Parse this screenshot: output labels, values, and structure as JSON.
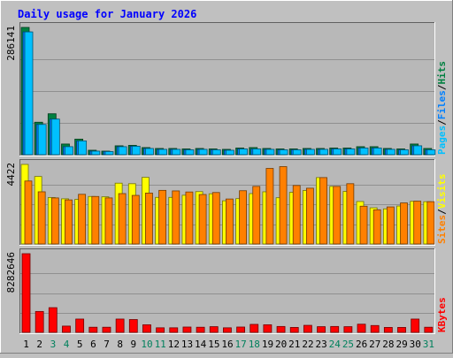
{
  "chart_data": {
    "type": "bar",
    "title": "Daily usage for January 2026",
    "categories": [
      "1",
      "2",
      "3",
      "4",
      "5",
      "6",
      "7",
      "8",
      "9",
      "10",
      "11",
      "12",
      "13",
      "14",
      "15",
      "16",
      "17",
      "18",
      "19",
      "20",
      "21",
      "22",
      "23",
      "24",
      "25",
      "26",
      "27",
      "28",
      "29",
      "30",
      "31"
    ],
    "weekend_days": [
      "3",
      "4",
      "10",
      "11",
      "17",
      "18",
      "24",
      "25",
      "31"
    ],
    "panels": [
      {
        "id": "hits-files",
        "max_label": "286141",
        "ylim": [
          0,
          286141
        ],
        "legend": [
          "Pages",
          "Files",
          "Hits"
        ],
        "series": [
          {
            "name": "Hits",
            "color": "#008040",
            "values": [
              286141,
              73000,
              92000,
              24000,
              35000,
              10000,
              8000,
              20000,
              21000,
              16000,
              14000,
              14000,
              13000,
              14000,
              13000,
              12000,
              15000,
              16000,
              14000,
              13000,
              13000,
              14000,
              14000,
              15000,
              15000,
              18000,
              18000,
              14000,
              13000,
              24000,
              14000
            ]
          },
          {
            "name": "Files",
            "color": "#0080ff",
            "values": [
              276000,
              68000,
              80000,
              18000,
              31000,
              8000,
              7000,
              18000,
              19000,
              14000,
              12000,
              12000,
              11000,
              12000,
              11000,
              10000,
              13000,
              13000,
              12000,
              11000,
              11000,
              12000,
              12000,
              13000,
              13000,
              15000,
              15000,
              12000,
              11000,
              20000,
              11000
            ]
          },
          {
            "name": "Pages",
            "color": "#00c0ff",
            "values": [
              276000,
              68000,
              80000,
              18000,
              31000,
              8000,
              7000,
              18000,
              19000,
              14000,
              12000,
              12000,
              11000,
              12000,
              11000,
              10000,
              13000,
              13000,
              12000,
              11000,
              11000,
              12000,
              12000,
              13000,
              13000,
              15000,
              15000,
              12000,
              11000,
              20000,
              11000
            ]
          }
        ]
      },
      {
        "id": "visits-sites",
        "max_label": "4422",
        "ylim": [
          0,
          4422
        ],
        "legend": [
          "Sites",
          "Visits"
        ],
        "series": [
          {
            "name": "Sites",
            "color": "#ffff00",
            "values": [
              4422,
              3750,
              2580,
              2510,
              2480,
              2640,
              2620,
              3380,
              3350,
              3700,
              2590,
              2590,
              2710,
              2910,
              2790,
              2400,
              2520,
              2800,
              2900,
              2570,
              2870,
              2970,
              3690,
              3200,
              2920,
              2360,
              2010,
              1950,
              2110,
              2370,
              2350
            ]
          },
          {
            "name": "Visits",
            "color": "#ff8000",
            "values": [
              3500,
              2900,
              2560,
              2450,
              2760,
              2640,
              2560,
              2800,
              2700,
              2830,
              2980,
              2950,
              2890,
              2750,
              2860,
              2500,
              2960,
              3200,
              4200,
              4300,
              3250,
              3100,
              3690,
              3200,
              3350,
              2100,
              1900,
              2060,
              2280,
              2380,
              2350
            ]
          }
        ]
      },
      {
        "id": "kbytes",
        "max_label": "8282646",
        "ylim": [
          0,
          8282646
        ],
        "legend": [
          "KBytes"
        ],
        "series": [
          {
            "name": "KBytes",
            "color": "#ff0000",
            "values": [
              8282646,
              2200000,
              2600000,
              660000,
              1400000,
              540000,
              540000,
              1400000,
              1350000,
              800000,
              480000,
              480000,
              560000,
              540000,
              600000,
              480000,
              560000,
              840000,
              800000,
              620000,
              520000,
              740000,
              600000,
              620000,
              600000,
              860000,
              720000,
              520000,
              520000,
              1400000,
              540000
            ]
          }
        ]
      }
    ]
  },
  "colors": {
    "background": "#c0c0c0",
    "plot_background": "#b8b8b8",
    "border_dark": "#606060",
    "title_color": "#0000ff",
    "weekday_label": "#000000",
    "weekend_label": "#00805c",
    "legend_pages": "#00c0ff",
    "legend_files": "#0080ff",
    "legend_hits": "#008040",
    "legend_sites": "#ff8000",
    "legend_visits": "#ffff00",
    "legend_kbytes": "#ff0000",
    "legend_slash": "#000000"
  }
}
